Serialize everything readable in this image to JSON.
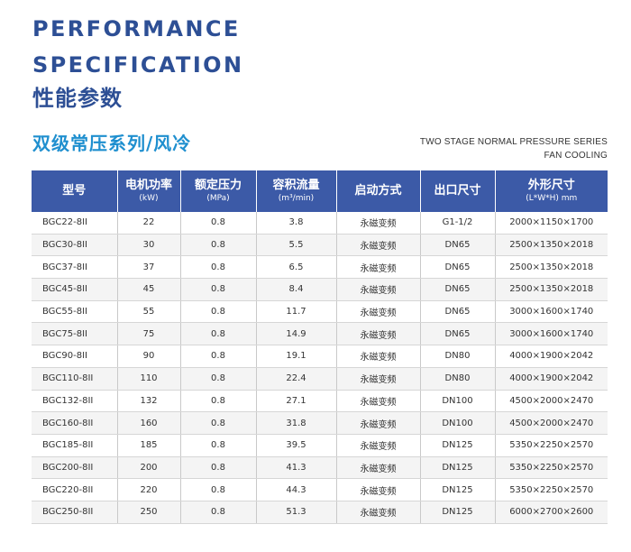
{
  "heading": {
    "line1": "PERFORMANCE",
    "line2": "SPECIFICATION",
    "line3": "性能参数"
  },
  "series": {
    "title_cn": "双级常压系列/风冷",
    "title_en_1": "TWO STAGE NORMAL PRESSURE SERIES",
    "title_en_2": "FAN COOLING"
  },
  "table": {
    "headers": [
      {
        "main": "型号",
        "unit": ""
      },
      {
        "main": "电机功率",
        "unit": "(kW)"
      },
      {
        "main": "额定压力",
        "unit": "(MPa)"
      },
      {
        "main": "容积流量",
        "unit": "(m³/min)"
      },
      {
        "main": "启动方式",
        "unit": ""
      },
      {
        "main": "出口尺寸",
        "unit": ""
      },
      {
        "main": "外形尺寸",
        "unit": "(L*W*H) mm"
      }
    ],
    "rows": [
      [
        "BGC22-8II",
        "22",
        "0.8",
        "3.8",
        "永磁变频",
        "G1-1/2",
        "2000×1150×1700"
      ],
      [
        "BGC30-8II",
        "30",
        "0.8",
        "5.5",
        "永磁变频",
        "DN65",
        "2500×1350×2018"
      ],
      [
        "BGC37-8II",
        "37",
        "0.8",
        "6.5",
        "永磁变频",
        "DN65",
        "2500×1350×2018"
      ],
      [
        "BGC45-8II",
        "45",
        "0.8",
        "8.4",
        "永磁变频",
        "DN65",
        "2500×1350×2018"
      ],
      [
        "BGC55-8II",
        "55",
        "0.8",
        "11.7",
        "永磁变频",
        "DN65",
        "3000×1600×1740"
      ],
      [
        "BGC75-8II",
        "75",
        "0.8",
        "14.9",
        "永磁变频",
        "DN65",
        "3000×1600×1740"
      ],
      [
        "BGC90-8II",
        "90",
        "0.8",
        "19.1",
        "永磁变频",
        "DN80",
        "4000×1900×2042"
      ],
      [
        "BGC110-8II",
        "110",
        "0.8",
        "22.4",
        "永磁变频",
        "DN80",
        "4000×1900×2042"
      ],
      [
        "BGC132-8II",
        "132",
        "0.8",
        "27.1",
        "永磁变频",
        "DN100",
        "4500×2000×2470"
      ],
      [
        "BGC160-8II",
        "160",
        "0.8",
        "31.8",
        "永磁变频",
        "DN100",
        "4500×2000×2470"
      ],
      [
        "BGC185-8II",
        "185",
        "0.8",
        "39.5",
        "永磁变频",
        "DN125",
        "5350×2250×2570"
      ],
      [
        "BGC200-8II",
        "200",
        "0.8",
        "41.3",
        "永磁变频",
        "DN125",
        "5350×2250×2570"
      ],
      [
        "BGC220-8II",
        "220",
        "0.8",
        "44.3",
        "永磁变频",
        "DN125",
        "5350×2250×2570"
      ],
      [
        "BGC250-8II",
        "250",
        "0.8",
        "51.3",
        "永磁变频",
        "DN125",
        "6000×2700×2600"
      ]
    ]
  }
}
